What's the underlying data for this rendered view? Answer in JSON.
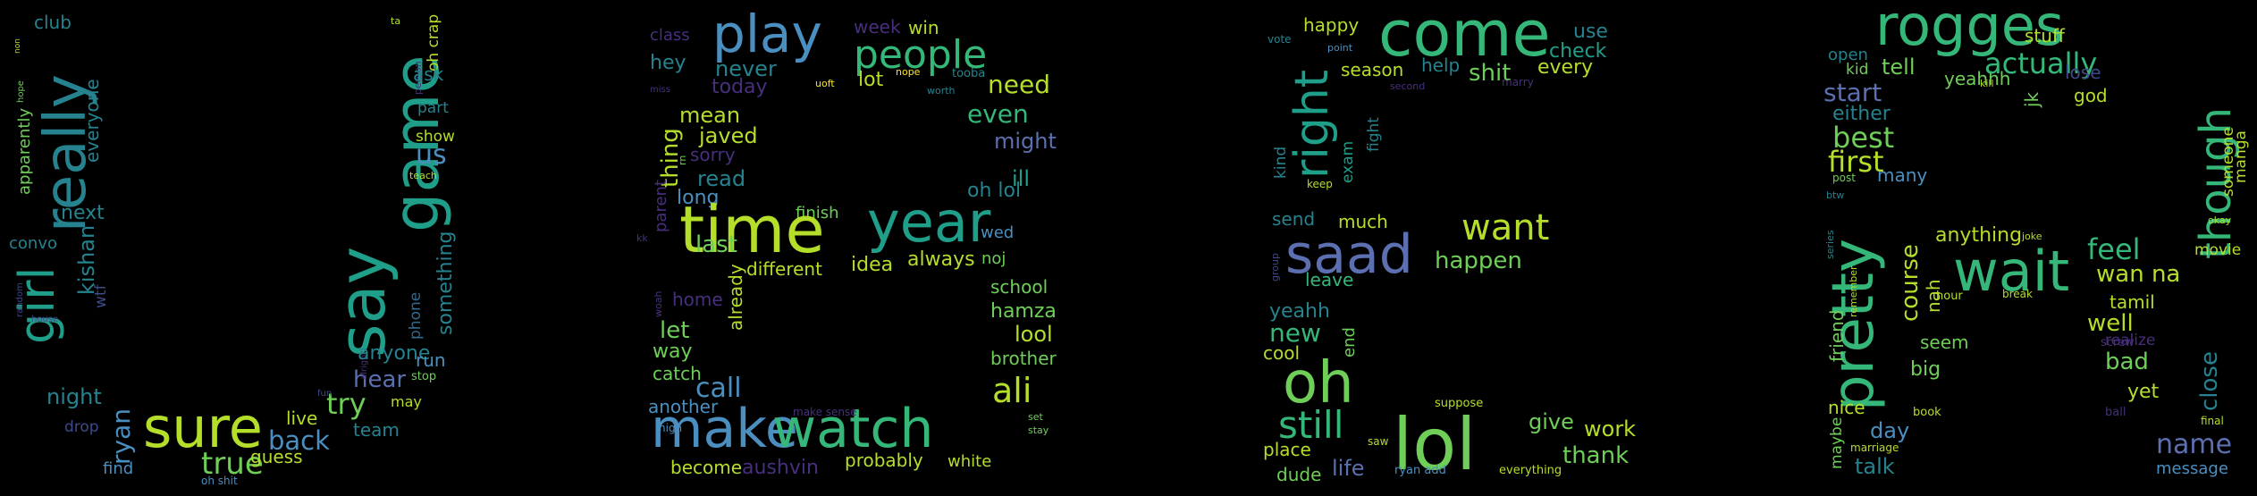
{
  "palette": {
    "background": "#000000",
    "purple": "#472f7d",
    "indigo": "#3e4a89",
    "slate": "#5b6fb1",
    "blue": "#31688e",
    "steel": "#4a8fbf",
    "teal": "#26828e",
    "cyan": "#1f9e89",
    "mint": "#35b779",
    "green": "#6ece58",
    "lime": "#b5de2b",
    "yellow": "#fde725"
  },
  "word_clouds": [
    {
      "letter": "U",
      "words": [
        "club",
        "girl",
        "really",
        "say",
        "game",
        "sure",
        "true",
        "apparently",
        "everyone",
        "hope",
        "non",
        "next",
        "convo",
        "kishan",
        "wtf",
        "night",
        "drop",
        "ryan",
        "random",
        "house",
        "find",
        "oh shit",
        "guess",
        "live",
        "back",
        "try",
        "team",
        "fun",
        "hear",
        "alright",
        "anyone",
        "phone",
        "stop",
        "run",
        "may",
        "something",
        "us",
        "teach",
        "show",
        "part",
        "person",
        "oh crap",
        "ask",
        "ta"
      ]
    },
    {
      "letter": "B",
      "words": [
        "class",
        "play",
        "week",
        "win",
        "people",
        "hey",
        "never",
        "today",
        "miss",
        "uoft",
        "lot",
        "nope",
        "tooba",
        "worth",
        "need",
        "mean",
        "javed",
        "sorry",
        "thing",
        "rn",
        "read",
        "long",
        "even",
        "might",
        "ill",
        "oh lol",
        "finish",
        "time",
        "year",
        "parent",
        "last",
        "different",
        "idea",
        "always",
        "noj",
        "wed",
        "kk",
        "woah",
        "home",
        "already",
        "let",
        "way",
        "catch",
        "call",
        "school",
        "hamza",
        "lool",
        "brother",
        "ali",
        "another",
        "high",
        "make",
        "watch",
        "make sense",
        "set",
        "stay",
        "become",
        "aushvin",
        "probably",
        "white"
      ]
    },
    {
      "letter": "S",
      "words": [
        "right",
        "vote",
        "happy",
        "point",
        "come",
        "use",
        "check",
        "every",
        "season",
        "help",
        "shit",
        "marry",
        "fight",
        "second",
        "exam",
        "kind",
        "keep",
        "much",
        "send",
        "saad",
        "want",
        "happen",
        "group",
        "leave",
        "yeahh",
        "new",
        "cool",
        "end",
        "oh",
        "still",
        "lol",
        "suppose",
        "give",
        "work",
        "thank",
        "saw",
        "place",
        "dude",
        "life",
        "ryan add",
        "everything"
      ]
    },
    {
      "letter": "A",
      "words": [
        "rogges",
        "stuff",
        "open",
        "kid",
        "tell",
        "yeahhh",
        "actually",
        "kill",
        "lose",
        "start",
        "jk",
        "god",
        "either",
        "best",
        "first",
        "post",
        "many",
        "though",
        "someone",
        "manga",
        "btw",
        "okay",
        "anything",
        "joke",
        "feel",
        "wait",
        "movie",
        "series",
        "wan na",
        "pretty",
        "remember",
        "course",
        "nah",
        "hour",
        "break",
        "tamil",
        "well",
        "friend",
        "seem",
        "screw",
        "realize",
        "bad",
        "big",
        "close",
        "yet",
        "nice",
        "book",
        "ball",
        "final",
        "maybe",
        "marriage",
        "day",
        "name",
        "talk",
        "message"
      ]
    }
  ]
}
